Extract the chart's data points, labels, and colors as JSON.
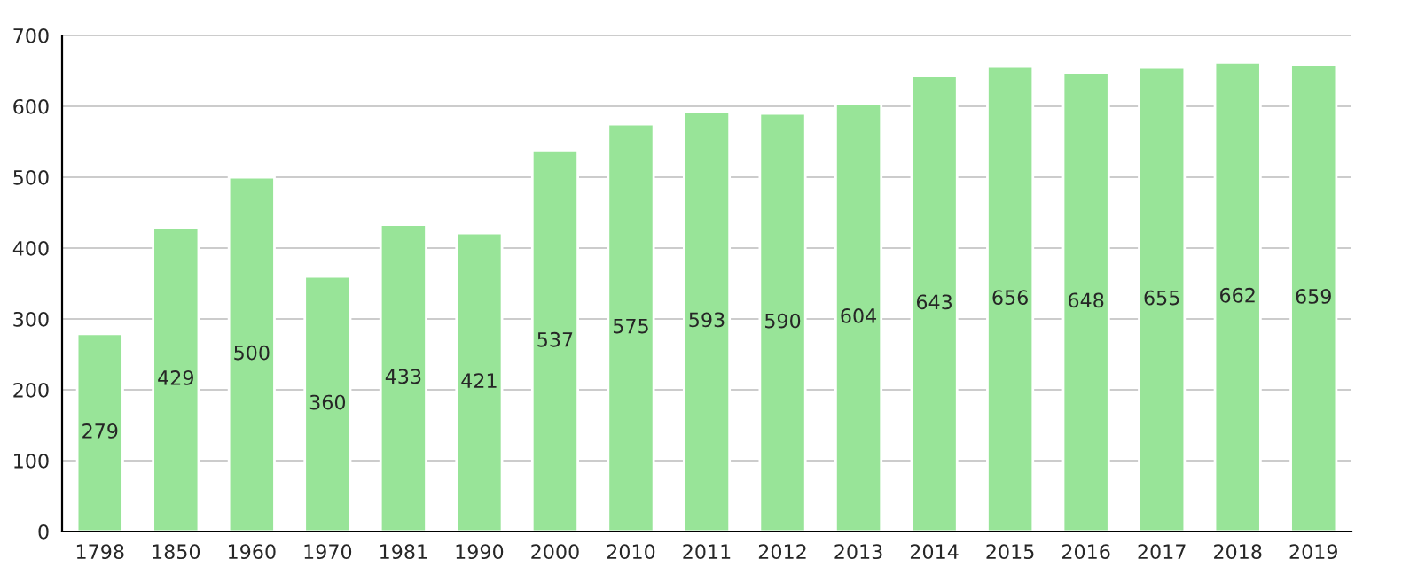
{
  "chart_data": {
    "type": "bar",
    "categories": [
      "1798",
      "1850",
      "1960",
      "1970",
      "1981",
      "1990",
      "2000",
      "2010",
      "2011",
      "2012",
      "2013",
      "2014",
      "2015",
      "2016",
      "2017",
      "2018",
      "2019"
    ],
    "values": [
      279,
      429,
      500,
      360,
      433,
      421,
      537,
      575,
      593,
      590,
      604,
      643,
      656,
      648,
      655,
      662,
      659
    ],
    "color": "#98e498",
    "ylim": [
      0,
      700
    ],
    "yticks": [
      0,
      100,
      200,
      300,
      400,
      500,
      600,
      700
    ],
    "grid": "y",
    "data_labels": true
  }
}
